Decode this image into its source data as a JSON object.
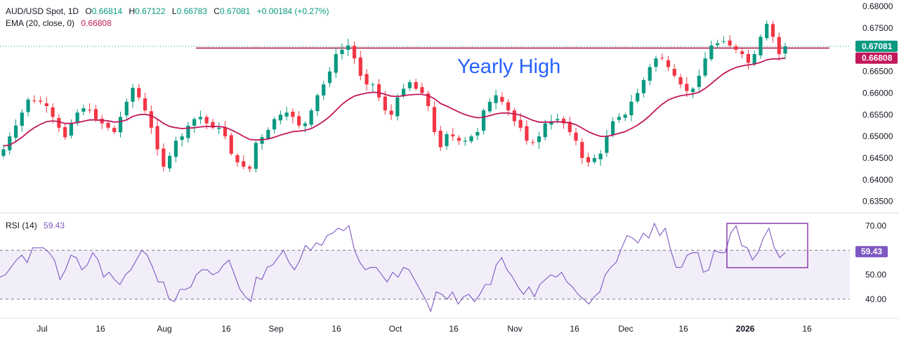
{
  "header": {
    "symbol": "AUD/USD Spot, 1D",
    "o_label": "O",
    "o_value": "0.66814",
    "h_label": "H",
    "h_value": "0.67122",
    "l_label": "L",
    "l_value": "0.66783",
    "c_label": "C",
    "c_value": "0.67081",
    "change": "+0.00184 (+0.27%)"
  },
  "ema_legend": {
    "label": "EMA (20, close, 0)",
    "value": "0.66808"
  },
  "rsi_legend": {
    "label": "RSI (14)",
    "value": "59.43"
  },
  "annotation": "Yearly High",
  "colors": {
    "up": "#089981",
    "down": "#f23645",
    "ema": "#c2185b",
    "rsi": "#7e57c2",
    "resistance": "#b71c4a",
    "box": "#7b1fa2",
    "annotation": "#2962ff"
  },
  "chart_data": [
    {
      "type": "candlestick",
      "title": "AUD/USD Spot, 1D",
      "ylim": [
        0.6325,
        0.6815
      ],
      "price_ticks": [
        "0.68000",
        "0.67500",
        "0.67081",
        "0.66808",
        "0.66500",
        "0.66000",
        "0.65500",
        "0.65000",
        "0.64500",
        "0.64000",
        "0.63500"
      ],
      "x_ticks": [
        "Jul",
        "16",
        "Aug",
        "16",
        "Sep",
        "16",
        "Oct",
        "16",
        "Nov",
        "16",
        "Dec",
        "16",
        "2026",
        "16"
      ],
      "price_badges": [
        {
          "value": 0.67081,
          "label": "0.67081",
          "color": "#089981"
        },
        {
          "value": 0.66808,
          "label": "0.66808",
          "color": "#c2185b"
        }
      ],
      "horizontal_line": {
        "value": 0.6704,
        "label": "Yearly High"
      },
      "close": [
        0.647,
        0.65,
        0.6525,
        0.6555,
        0.6585,
        0.6582,
        0.658,
        0.657,
        0.6545,
        0.652,
        0.6498,
        0.653,
        0.6555,
        0.6565,
        0.656,
        0.654,
        0.653,
        0.652,
        0.651,
        0.6545,
        0.658,
        0.6612,
        0.659,
        0.656,
        0.652,
        0.647,
        0.643,
        0.6455,
        0.649,
        0.65,
        0.6525,
        0.654,
        0.6545,
        0.653,
        0.652,
        0.652,
        0.65,
        0.646,
        0.644,
        0.643,
        0.6425,
        0.6485,
        0.6498,
        0.6515,
        0.654,
        0.655,
        0.6555,
        0.6545,
        0.6525,
        0.653,
        0.656,
        0.6595,
        0.662,
        0.665,
        0.669,
        0.67,
        0.671,
        0.668,
        0.664,
        0.662,
        0.662,
        0.659,
        0.656,
        0.655,
        0.659,
        0.661,
        0.6625,
        0.661,
        0.66,
        0.657,
        0.651,
        0.6475,
        0.6505,
        0.65,
        0.649,
        0.649,
        0.65,
        0.651,
        0.656,
        0.658,
        0.6595,
        0.658,
        0.656,
        0.6535,
        0.652,
        0.649,
        0.6485,
        0.65,
        0.653,
        0.6535,
        0.654,
        0.653,
        0.651,
        0.649,
        0.645,
        0.644,
        0.645,
        0.646,
        0.65,
        0.6535,
        0.6545,
        0.655,
        0.658,
        0.66,
        0.663,
        0.666,
        0.668,
        0.668,
        0.666,
        0.664,
        0.662,
        0.6605,
        0.661,
        0.664,
        0.668,
        0.671,
        0.6715,
        0.672,
        0.671,
        0.67,
        0.669,
        0.667,
        0.669,
        0.673,
        0.676,
        0.673,
        0.669,
        0.6708
      ],
      "ema20": [
        0.6478,
        0.648,
        0.6488,
        0.6498,
        0.651,
        0.652,
        0.6528,
        0.6534,
        0.6536,
        0.6534,
        0.653,
        0.653,
        0.6532,
        0.6535,
        0.6538,
        0.6538,
        0.6537,
        0.6536,
        0.6533,
        0.6534,
        0.6538,
        0.6546,
        0.655,
        0.6551,
        0.6548,
        0.654,
        0.653,
        0.6523,
        0.652,
        0.6518,
        0.6519,
        0.652,
        0.6522,
        0.6523,
        0.6523,
        0.6523,
        0.6521,
        0.6515,
        0.6508,
        0.65,
        0.6493,
        0.6492,
        0.6492,
        0.6494,
        0.6498,
        0.6503,
        0.6507,
        0.6511,
        0.6512,
        0.6514,
        0.6518,
        0.6526,
        0.6535,
        0.6546,
        0.656,
        0.6574,
        0.6585,
        0.6593,
        0.6597,
        0.66,
        0.6602,
        0.6601,
        0.6597,
        0.6593,
        0.6592,
        0.6594,
        0.6596,
        0.6597,
        0.6597,
        0.6594,
        0.6587,
        0.6576,
        0.657,
        0.6563,
        0.6556,
        0.655,
        0.6546,
        0.6543,
        0.6544,
        0.6548,
        0.6552,
        0.6554,
        0.6554,
        0.6552,
        0.6549,
        0.6543,
        0.6537,
        0.6533,
        0.6533,
        0.6533,
        0.6534,
        0.6533,
        0.6531,
        0.6527,
        0.6519,
        0.6511,
        0.6505,
        0.65,
        0.65,
        0.6503,
        0.6507,
        0.6511,
        0.6518,
        0.6526,
        0.6536,
        0.6548,
        0.6562,
        0.6574,
        0.6584,
        0.659,
        0.6594,
        0.6596,
        0.6598,
        0.6602,
        0.6611,
        0.6622,
        0.6634,
        0.6645,
        0.6653,
        0.6659,
        0.6663,
        0.6665,
        0.6667,
        0.6671,
        0.6677,
        0.6679,
        0.6679,
        0.6681
      ]
    },
    {
      "type": "line",
      "title": "RSI (14)",
      "ylim": [
        32.5,
        75
      ],
      "y_ticks": [
        "70.00",
        "50.00",
        "40.00"
      ],
      "badge": {
        "value": 59.43,
        "label": "59.43"
      },
      "band": [
        40,
        60
      ],
      "values": [
        49,
        50,
        53,
        56,
        58,
        55,
        61,
        61,
        61,
        59,
        56,
        48,
        52,
        58,
        57,
        52,
        54,
        59,
        56,
        49,
        51,
        48,
        46,
        50,
        52,
        56,
        60,
        58,
        53,
        47,
        47,
        40,
        39,
        44,
        44,
        45,
        50,
        52,
        52,
        50,
        51,
        54,
        56,
        50,
        44,
        41,
        39,
        49,
        48,
        53,
        54,
        57,
        60,
        55,
        52,
        56,
        62,
        60,
        63,
        62,
        66,
        67,
        69,
        68,
        70,
        60,
        55,
        52,
        53,
        53,
        50,
        47,
        51,
        49,
        53,
        52,
        48,
        44,
        40,
        35,
        43,
        42,
        40,
        43,
        38,
        41,
        42,
        39,
        42,
        46,
        46,
        54,
        57,
        52,
        49,
        45,
        42,
        45,
        41,
        46,
        48,
        50,
        49,
        51,
        47,
        45,
        42,
        40,
        38,
        41,
        43,
        50,
        53,
        55,
        61,
        66,
        65,
        63,
        67,
        65,
        71,
        66,
        69,
        60,
        53,
        53,
        58,
        59,
        59,
        51,
        52,
        60,
        59,
        59,
        67,
        70,
        62,
        61,
        56,
        59,
        65,
        69,
        61,
        57,
        59
      ]
    }
  ]
}
